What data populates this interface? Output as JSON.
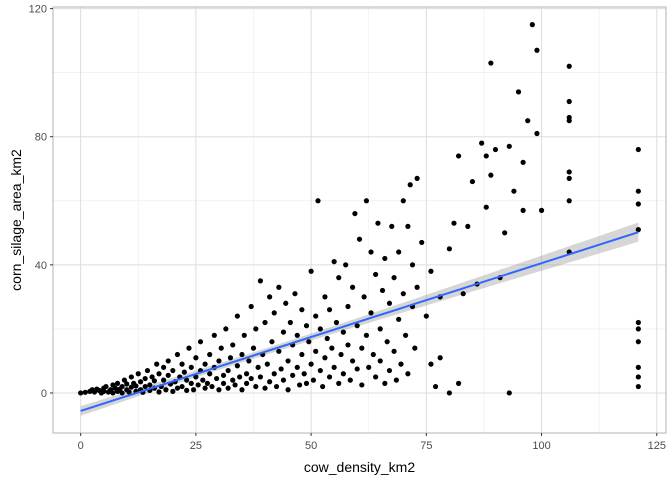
{
  "chart_data": {
    "type": "scatter",
    "title": "",
    "xlabel": "cow_density_km2",
    "ylabel": "corn_silage_area_km2",
    "xlim": [
      -6,
      127
    ],
    "ylim": [
      -12.5,
      120.5
    ],
    "x_ticks": [
      0,
      25,
      50,
      75,
      100,
      125
    ],
    "y_ticks": [
      0,
      40,
      80,
      120
    ],
    "grid": true,
    "legend": "none",
    "colors": {
      "points": "#000000",
      "trend_line": "#3366ff",
      "confidence_band": "#999999",
      "grid": "#dddddd",
      "panel_border": "#b3b3b3"
    },
    "trend_line": {
      "method": "lm",
      "x": [
        0,
        121
      ],
      "y": [
        -5.6,
        50.2
      ],
      "ci_halfwidth_at_center": 1.0,
      "ci_halfwidth_at_max": 3.0,
      "x_center": 35
    },
    "points": [
      [
        0,
        0
      ],
      [
        1,
        0.2
      ],
      [
        2,
        0.5
      ],
      [
        2.5,
        1
      ],
      [
        3,
        0.3
      ],
      [
        3.5,
        1.2
      ],
      [
        4,
        0.8
      ],
      [
        4.5,
        0
      ],
      [
        5,
        0.5
      ],
      [
        5,
        1.5
      ],
      [
        5.5,
        2
      ],
      [
        6,
        0.3
      ],
      [
        6.5,
        1
      ],
      [
        7,
        0
      ],
      [
        7,
        2.5
      ],
      [
        7.5,
        1.5
      ],
      [
        8,
        0.5
      ],
      [
        8,
        3
      ],
      [
        8.5,
        1.2
      ],
      [
        9,
        2
      ],
      [
        9,
        0
      ],
      [
        9.5,
        4
      ],
      [
        10,
        1
      ],
      [
        10,
        2.8
      ],
      [
        10.5,
        0.3
      ],
      [
        11,
        1.8
      ],
      [
        11,
        5
      ],
      [
        11.5,
        3
      ],
      [
        12,
        0.5
      ],
      [
        12,
        2.2
      ],
      [
        12.5,
        6
      ],
      [
        13,
        1
      ],
      [
        13,
        3.5
      ],
      [
        13.5,
        0.2
      ],
      [
        14,
        2
      ],
      [
        14,
        4.5
      ],
      [
        14.5,
        7
      ],
      [
        15,
        0.8
      ],
      [
        15,
        2.5
      ],
      [
        15.5,
        5
      ],
      [
        16,
        1.5
      ],
      [
        16,
        3.8
      ],
      [
        16.5,
        9
      ],
      [
        17,
        0.3
      ],
      [
        17,
        6
      ],
      [
        17.5,
        2
      ],
      [
        18,
        4
      ],
      [
        18,
        8
      ],
      [
        18.5,
        1
      ],
      [
        19,
        5.5
      ],
      [
        19,
        10
      ],
      [
        19.5,
        2.8
      ],
      [
        20,
        0.5
      ],
      [
        20,
        7
      ],
      [
        20.5,
        3.5
      ],
      [
        21,
        12
      ],
      [
        21,
        1.5
      ],
      [
        21.5,
        5
      ],
      [
        22,
        9
      ],
      [
        22,
        2
      ],
      [
        22.5,
        6.5
      ],
      [
        23,
        0.8
      ],
      [
        23,
        4
      ],
      [
        23.5,
        14
      ],
      [
        24,
        3
      ],
      [
        24,
        8
      ],
      [
        24.5,
        1
      ],
      [
        25,
        5
      ],
      [
        25,
        11
      ],
      [
        25.5,
        2.5
      ],
      [
        26,
        7
      ],
      [
        26,
        16
      ],
      [
        26.5,
        4
      ],
      [
        27,
        1.5
      ],
      [
        27,
        9
      ],
      [
        27.5,
        3
      ],
      [
        28,
        6
      ],
      [
        28,
        12
      ],
      [
        28.5,
        2
      ],
      [
        29,
        18
      ],
      [
        29,
        8
      ],
      [
        29.5,
        4.5
      ],
      [
        30,
        1
      ],
      [
        30,
        10
      ],
      [
        30.5,
        14
      ],
      [
        31,
        5.5
      ],
      [
        31,
        3
      ],
      [
        31.5,
        20
      ],
      [
        32,
        7
      ],
      [
        32,
        1.5
      ],
      [
        32.5,
        11
      ],
      [
        33,
        4
      ],
      [
        33,
        15
      ],
      [
        33.5,
        2.5
      ],
      [
        34,
        8.5
      ],
      [
        34,
        24
      ],
      [
        34.5,
        5
      ],
      [
        35,
        12
      ],
      [
        35,
        1
      ],
      [
        35.5,
        18
      ],
      [
        36,
        6
      ],
      [
        36,
        3
      ],
      [
        36.5,
        10
      ],
      [
        37,
        27
      ],
      [
        37,
        4.5
      ],
      [
        37.5,
        14
      ],
      [
        38,
        2
      ],
      [
        38,
        20
      ],
      [
        38.5,
        8
      ],
      [
        39,
        35
      ],
      [
        39,
        5
      ],
      [
        39.5,
        12
      ],
      [
        40,
        1.5
      ],
      [
        40,
        22
      ],
      [
        40.5,
        9
      ],
      [
        41,
        30
      ],
      [
        41,
        3.5
      ],
      [
        41.5,
        16
      ],
      [
        42,
        6
      ],
      [
        42,
        25
      ],
      [
        42.5,
        2
      ],
      [
        43,
        13
      ],
      [
        43,
        33
      ],
      [
        43.5,
        7.5
      ],
      [
        44,
        19
      ],
      [
        44,
        4
      ],
      [
        44.5,
        28
      ],
      [
        45,
        10
      ],
      [
        45,
        1
      ],
      [
        45.5,
        22
      ],
      [
        46,
        15
      ],
      [
        46,
        5.5
      ],
      [
        46.5,
        31
      ],
      [
        47,
        8
      ],
      [
        47,
        18
      ],
      [
        47.5,
        2.5
      ],
      [
        48,
        12
      ],
      [
        48,
        26
      ],
      [
        48.5,
        6
      ],
      [
        49,
        21
      ],
      [
        49,
        3
      ],
      [
        49.5,
        16
      ],
      [
        50,
        9
      ],
      [
        50,
        38
      ],
      [
        50.5,
        4
      ],
      [
        51,
        24
      ],
      [
        51,
        13
      ],
      [
        51.5,
        60
      ],
      [
        52,
        7
      ],
      [
        52,
        20
      ],
      [
        52.5,
        2
      ],
      [
        53,
        30
      ],
      [
        53,
        11
      ],
      [
        53.5,
        17
      ],
      [
        54,
        5
      ],
      [
        54,
        26
      ],
      [
        54.5,
        14
      ],
      [
        55,
        41
      ],
      [
        55,
        8
      ],
      [
        55.5,
        22
      ],
      [
        56,
        3
      ],
      [
        56,
        36
      ],
      [
        56.5,
        12
      ],
      [
        57,
        19
      ],
      [
        57,
        6
      ],
      [
        57.5,
        40
      ],
      [
        58,
        27
      ],
      [
        58,
        15
      ],
      [
        58.5,
        4
      ],
      [
        59,
        33
      ],
      [
        59,
        10
      ],
      [
        59.5,
        56
      ],
      [
        60,
        21
      ],
      [
        60,
        7.5
      ],
      [
        60.5,
        48
      ],
      [
        61,
        14
      ],
      [
        61,
        2.5
      ],
      [
        61.5,
        30
      ],
      [
        62,
        60
      ],
      [
        62,
        18
      ],
      [
        62.5,
        8
      ],
      [
        63,
        44
      ],
      [
        63,
        25
      ],
      [
        63.5,
        12
      ],
      [
        64,
        37
      ],
      [
        64,
        5
      ],
      [
        64.5,
        53
      ],
      [
        65,
        20
      ],
      [
        65,
        10
      ],
      [
        65.5,
        32
      ],
      [
        66,
        3
      ],
      [
        66,
        42
      ],
      [
        66.5,
        16
      ],
      [
        67,
        28
      ],
      [
        67,
        7
      ],
      [
        67.5,
        52
      ],
      [
        68,
        13
      ],
      [
        68,
        36
      ],
      [
        68.5,
        4
      ],
      [
        69,
        23
      ],
      [
        69,
        44
      ],
      [
        69.5,
        9
      ],
      [
        70,
        60
      ],
      [
        70,
        31
      ],
      [
        70.5,
        18
      ],
      [
        71,
        52
      ],
      [
        71,
        6
      ],
      [
        71.5,
        65
      ],
      [
        72,
        27
      ],
      [
        72,
        40
      ],
      [
        72.5,
        14
      ],
      [
        73,
        67
      ],
      [
        73,
        33
      ],
      [
        74,
        47
      ],
      [
        75,
        24
      ],
      [
        76,
        9
      ],
      [
        76,
        38
      ],
      [
        77,
        2
      ],
      [
        78,
        30
      ],
      [
        78,
        11
      ],
      [
        80,
        45
      ],
      [
        80,
        0
      ],
      [
        81,
        53
      ],
      [
        82,
        74
      ],
      [
        82,
        3
      ],
      [
        83,
        31
      ],
      [
        84,
        52
      ],
      [
        85,
        66
      ],
      [
        86,
        34
      ],
      [
        87,
        78
      ],
      [
        88,
        58
      ],
      [
        88,
        74
      ],
      [
        89,
        68
      ],
      [
        89,
        103
      ],
      [
        90,
        76
      ],
      [
        91,
        36
      ],
      [
        92,
        50
      ],
      [
        93,
        77
      ],
      [
        93,
        0
      ],
      [
        94,
        63
      ],
      [
        95,
        94
      ],
      [
        96,
        72
      ],
      [
        96,
        57
      ],
      [
        97,
        85
      ],
      [
        98,
        115
      ],
      [
        99,
        81
      ],
      [
        99,
        107
      ],
      [
        100,
        57
      ],
      [
        106,
        102
      ],
      [
        106,
        91
      ],
      [
        106,
        86
      ],
      [
        106,
        69
      ],
      [
        106,
        67
      ],
      [
        106,
        60
      ],
      [
        106,
        44
      ],
      [
        106,
        85
      ],
      [
        121,
        76
      ],
      [
        121,
        63
      ],
      [
        121,
        59
      ],
      [
        121,
        51
      ],
      [
        121,
        22
      ],
      [
        121,
        20
      ],
      [
        121,
        16
      ],
      [
        121,
        8
      ],
      [
        121,
        5
      ],
      [
        121,
        2
      ]
    ]
  }
}
